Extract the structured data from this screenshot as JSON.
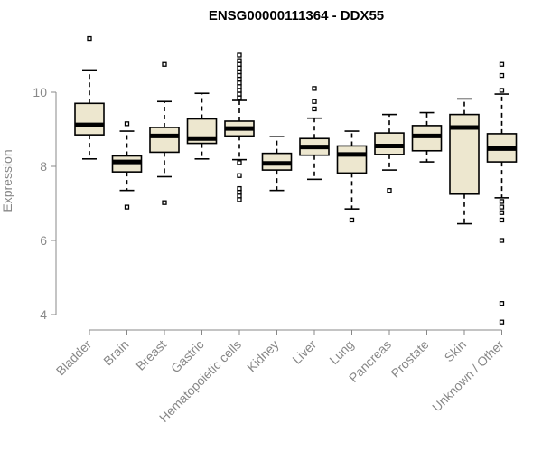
{
  "chart_data": {
    "type": "box",
    "title": "ENSG00000111364 - DDX55",
    "ylabel": "Expression",
    "xlabel": "",
    "ylim": [
      3.6,
      11.8
    ],
    "yticks": [
      4,
      6,
      8,
      10
    ],
    "colors": {
      "box_fill": "#ede7cf",
      "stroke": "#000000",
      "axis": "#888888"
    },
    "categories": [
      "Bladder",
      "Brain",
      "Breast",
      "Gastric",
      "Hematopoietic cells",
      "Kidney",
      "Liver",
      "Lung",
      "Pancreas",
      "Prostate",
      "Skin",
      "Unknown / Other"
    ],
    "boxes": [
      {
        "category": "Bladder",
        "whisker_low": 8.2,
        "q1": 8.85,
        "median": 9.12,
        "q3": 9.7,
        "whisker_high": 10.6,
        "outliers": [
          11.45
        ]
      },
      {
        "category": "Brain",
        "whisker_low": 7.35,
        "q1": 7.85,
        "median": 8.12,
        "q3": 8.28,
        "whisker_high": 8.95,
        "outliers": [
          6.9,
          9.15
        ]
      },
      {
        "category": "Breast",
        "whisker_low": 7.72,
        "q1": 8.38,
        "median": 8.82,
        "q3": 9.05,
        "whisker_high": 9.75,
        "outliers": [
          7.02,
          10.75
        ]
      },
      {
        "category": "Gastric",
        "whisker_low": 8.2,
        "q1": 8.62,
        "median": 8.75,
        "q3": 9.28,
        "whisker_high": 9.97,
        "outliers": []
      },
      {
        "category": "Hematopoietic cells",
        "whisker_low": 8.18,
        "q1": 8.82,
        "median": 9.02,
        "q3": 9.22,
        "whisker_high": 9.78,
        "outliers": [
          7.1,
          7.2,
          7.3,
          7.4,
          7.75,
          8.1,
          9.85,
          9.95,
          10.05,
          10.15,
          10.25,
          10.35,
          10.45,
          10.55,
          10.65,
          10.75,
          10.85,
          11.0
        ]
      },
      {
        "category": "Kidney",
        "whisker_low": 7.35,
        "q1": 7.9,
        "median": 8.08,
        "q3": 8.35,
        "whisker_high": 8.8,
        "outliers": []
      },
      {
        "category": "Liver",
        "whisker_low": 7.65,
        "q1": 8.3,
        "median": 8.52,
        "q3": 8.75,
        "whisker_high": 9.3,
        "outliers": [
          9.55,
          9.75,
          10.1
        ]
      },
      {
        "category": "Lung",
        "whisker_low": 6.85,
        "q1": 7.82,
        "median": 8.32,
        "q3": 8.55,
        "whisker_high": 8.95,
        "outliers": [
          6.55
        ]
      },
      {
        "category": "Pancreas",
        "whisker_low": 7.9,
        "q1": 8.32,
        "median": 8.55,
        "q3": 8.9,
        "whisker_high": 9.4,
        "outliers": [
          7.35
        ]
      },
      {
        "category": "Prostate",
        "whisker_low": 8.12,
        "q1": 8.42,
        "median": 8.82,
        "q3": 9.1,
        "whisker_high": 9.45,
        "outliers": []
      },
      {
        "category": "Skin",
        "whisker_low": 6.45,
        "q1": 7.25,
        "median": 9.05,
        "q3": 9.4,
        "whisker_high": 9.82,
        "outliers": []
      },
      {
        "category": "Unknown / Other",
        "whisker_low": 7.15,
        "q1": 8.12,
        "median": 8.48,
        "q3": 8.88,
        "whisker_high": 9.95,
        "outliers": [
          3.8,
          4.3,
          6.0,
          6.55,
          6.75,
          6.9,
          7.05,
          10.05,
          10.45,
          10.75
        ]
      }
    ]
  }
}
